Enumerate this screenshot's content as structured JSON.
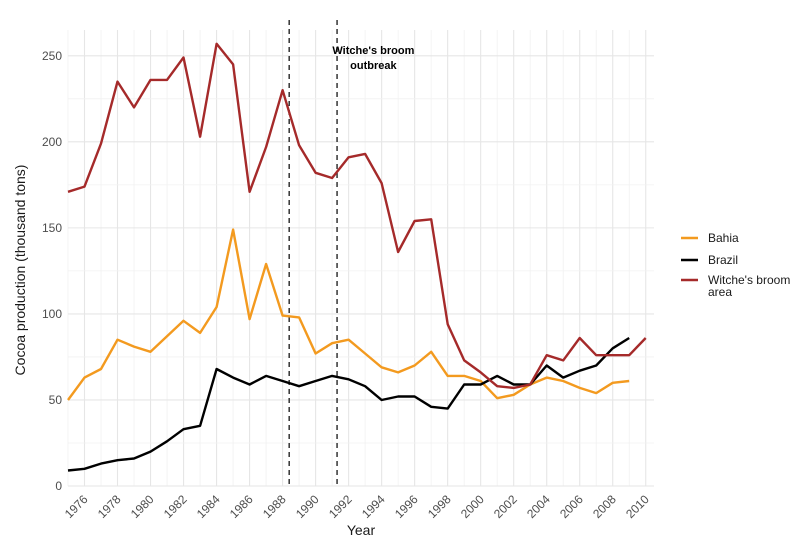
{
  "chart_data": {
    "type": "line",
    "xlabel": "Year",
    "ylabel": "Cocoa production (thousand tons)",
    "xlim": [
      1975,
      2010.5
    ],
    "ylim": [
      0,
      265
    ],
    "x_ticks": [
      1976,
      1978,
      1980,
      1982,
      1984,
      1986,
      1988,
      1990,
      1992,
      1994,
      1996,
      1998,
      2000,
      2002,
      2004,
      2006,
      2008,
      2010
    ],
    "y_ticks": [
      0,
      50,
      100,
      150,
      200,
      250
    ],
    "x": [
      1975,
      1976,
      1977,
      1978,
      1979,
      1980,
      1981,
      1982,
      1983,
      1984,
      1985,
      1986,
      1987,
      1988,
      1989,
      1990,
      1991,
      1992,
      1993,
      1994,
      1995,
      1996,
      1997,
      1998,
      1999,
      2000,
      2001,
      2002,
      2003,
      2004,
      2005,
      2006,
      2007,
      2008,
      2009,
      2010
    ],
    "series": [
      {
        "name": "Bahia",
        "color": "#f39a1f",
        "values": [
          50,
          63,
          68,
          85,
          81,
          78,
          87,
          96,
          89,
          104,
          149,
          97,
          129,
          99,
          98,
          77,
          83,
          85,
          77,
          69,
          66,
          70,
          78,
          64,
          64,
          61,
          51,
          53,
          59,
          63,
          61,
          57,
          54,
          60,
          61,
          null
        ]
      },
      {
        "name": "Brazil",
        "color": "#000000",
        "values": [
          9,
          10,
          13,
          15,
          16,
          20,
          26,
          33,
          35,
          68,
          63,
          59,
          64,
          61,
          58,
          61,
          64,
          62,
          58,
          50,
          52,
          52,
          46,
          45,
          59,
          59,
          64,
          59,
          59,
          70,
          63,
          67,
          70,
          80,
          86,
          null
        ]
      },
      {
        "name": "Witche's broom area",
        "legend_lines": [
          "Witche's broom",
          "area"
        ],
        "color": "#a52a2a",
        "values": [
          171,
          174,
          199,
          235,
          220,
          236,
          236,
          249,
          203,
          257,
          245,
          171,
          197,
          230,
          198,
          182,
          179,
          191,
          193,
          176,
          136,
          154,
          155,
          94,
          73,
          66,
          58,
          57,
          59,
          76,
          73,
          86,
          76,
          76,
          76,
          86
        ]
      }
    ],
    "vlines": [
      1988.4,
      1991.3
    ],
    "annotation": {
      "line1": "Witche's broom",
      "line2": "outbreak",
      "x": 1993.5,
      "y": 250
    },
    "grid": true,
    "legend_position": "right"
  }
}
